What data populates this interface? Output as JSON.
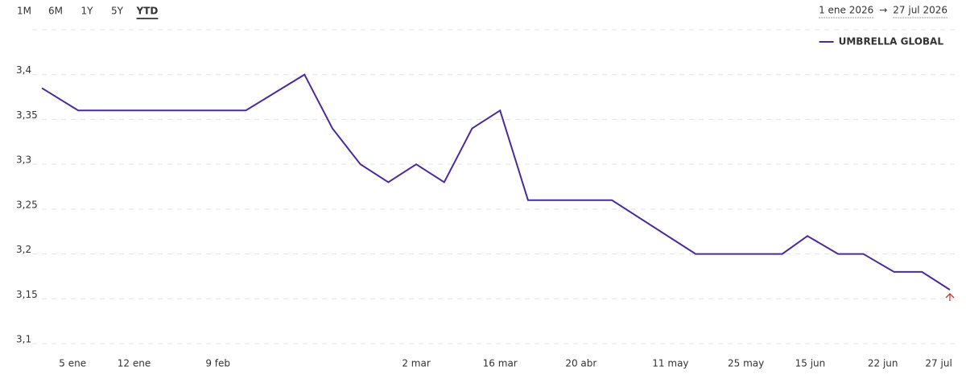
{
  "controls": {
    "tabs": [
      "1M",
      "6M",
      "1Y",
      "5Y",
      "YTD"
    ],
    "active_tab": 4,
    "date_from": "1 ene 2026",
    "arrow": "→",
    "date_to": "27 jul 2026"
  },
  "chart_data": {
    "type": "line",
    "x": [
      0,
      1.3,
      7.3,
      9.4,
      10.4,
      11.4,
      12.4,
      13.4,
      14.4,
      15.4,
      16.4,
      17.4,
      20.4,
      23.4,
      26.5,
      27.4,
      28.5,
      29.4,
      30.5,
      31.5,
      32.5
    ],
    "series": [
      {
        "name": "UMBRELLA GLOBAL",
        "color": "#4b2a9e",
        "values": [
          3.385,
          3.36,
          3.36,
          3.4,
          3.34,
          3.3,
          3.28,
          3.3,
          3.28,
          3.34,
          3.36,
          3.26,
          3.26,
          3.2,
          3.2,
          3.22,
          3.2,
          3.2,
          3.18,
          3.18,
          3.16
        ]
      }
    ],
    "xlim": [
      0,
      32.5
    ],
    "xticks": [
      {
        "value": 1.1,
        "label": "5 ene"
      },
      {
        "value": 3.3,
        "label": "12 ene"
      },
      {
        "value": 6.3,
        "label": "9 feb"
      },
      {
        "value": 13.4,
        "label": "2 mar"
      },
      {
        "value": 16.4,
        "label": "16 mar"
      },
      {
        "value": 19.3,
        "label": "20 abr"
      },
      {
        "value": 22.5,
        "label": "11 may"
      },
      {
        "value": 25.2,
        "label": "25 may"
      },
      {
        "value": 27.5,
        "label": "15 jun"
      },
      {
        "value": 30.1,
        "label": "22 jun"
      },
      {
        "value": 32.1,
        "label": "27 jul"
      }
    ],
    "ylim": [
      3.1,
      3.45
    ],
    "yticks": [
      {
        "value": 3.1,
        "label": "3,1"
      },
      {
        "value": 3.15,
        "label": "3,15"
      },
      {
        "value": 3.2,
        "label": "3,2"
      },
      {
        "value": 3.25,
        "label": "3,25"
      },
      {
        "value": 3.3,
        "label": "3,3"
      },
      {
        "value": 3.35,
        "label": "3,35"
      },
      {
        "value": 3.4,
        "label": "3,4"
      }
    ],
    "grid": true,
    "legend": "top-right"
  }
}
